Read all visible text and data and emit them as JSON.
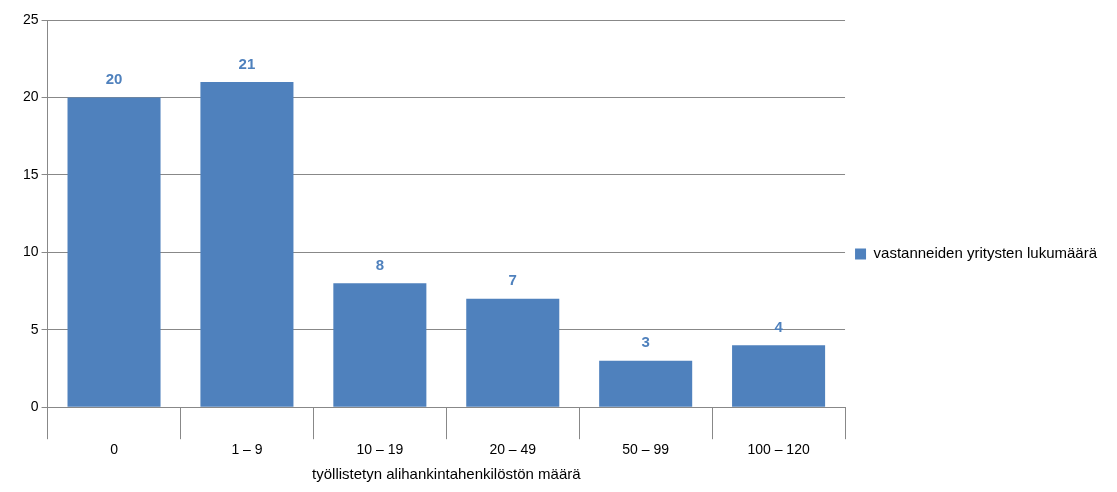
{
  "chart_data": {
    "type": "bar",
    "xlabel": "työllistetyn alihankintahenkilöstön määrä",
    "categories": [
      "0",
      "1 – 9",
      "10 – 19",
      "20 – 49",
      "50 – 99",
      "100 – 120"
    ],
    "series": [
      {
        "name": "vastanneiden yritysten lukumäärä",
        "color": "#4f81bd",
        "values": [
          20,
          21,
          8,
          7,
          3,
          4
        ]
      }
    ],
    "ylim": [
      0,
      25
    ],
    "yticks": [
      0,
      5,
      10,
      15,
      20,
      25
    ],
    "grid": "y",
    "legend": "right",
    "data_labels": true
  }
}
